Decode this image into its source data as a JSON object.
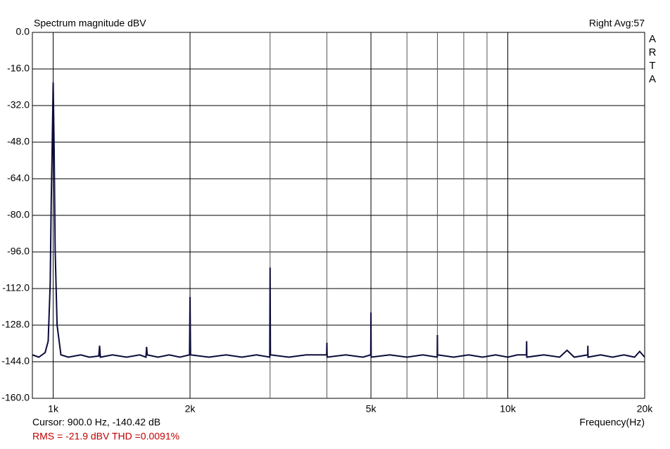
{
  "chart_data": {
    "type": "line",
    "title": "Spectrum magnitude dBV",
    "channel_info": "Right  Avg:57",
    "brand": "ARTA",
    "x_label": "Frequency(Hz)",
    "cursor_text": "Cursor:  900.0 Hz, -140.42 dB",
    "measurement_text": "RMS =  -21.9 dBV   THD =0.0091%",
    "x_log": true,
    "grid": true,
    "xlim": [
      900,
      20000
    ],
    "ylim": [
      -160,
      0
    ],
    "xticks": [
      {
        "value": 1000,
        "label": "1k"
      },
      {
        "value": 2000,
        "label": "2k"
      },
      {
        "value": 5000,
        "label": "5k"
      },
      {
        "value": 10000,
        "label": "10k"
      },
      {
        "value": 20000,
        "label": "20k"
      }
    ],
    "x_minor_grid": [
      3000,
      4000,
      6000,
      7000,
      8000,
      9000
    ],
    "yticks": [
      {
        "value": 0,
        "label": "0.0"
      },
      {
        "value": -16,
        "label": "-16.0"
      },
      {
        "value": -32,
        "label": "-32.0"
      },
      {
        "value": -48,
        "label": "-48.0"
      },
      {
        "value": -64,
        "label": "-64.0"
      },
      {
        "value": -80,
        "label": "-80.0"
      },
      {
        "value": -96,
        "label": "-96.0"
      },
      {
        "value": -112,
        "label": "-112.0"
      },
      {
        "value": -128,
        "label": "-128.0"
      },
      {
        "value": -144,
        "label": "-144.0"
      },
      {
        "value": -160,
        "label": "-160.0"
      }
    ],
    "series": [
      {
        "color": "#0b0b3b",
        "x": [
          900,
          930,
          960,
          975,
          985,
          990,
          995,
          1000,
          1005,
          1010,
          1020,
          1040,
          1080,
          1150,
          1200,
          1260,
          1265,
          1270,
          1350,
          1450,
          1550,
          1600,
          1605,
          1610,
          1700,
          1800,
          1900,
          1995,
          2000,
          2005,
          2200,
          2400,
          2600,
          2800,
          2995,
          3000,
          3005,
          3300,
          3600,
          3995,
          4000,
          4005,
          4400,
          4800,
          4995,
          5000,
          5005,
          5500,
          6000,
          6500,
          6995,
          7000,
          7005,
          7600,
          8200,
          8800,
          9400,
          10000,
          10500,
          10990,
          11000,
          11010,
          12000,
          13000,
          13500,
          14000,
          14990,
          15000,
          15010,
          16000,
          17000,
          18000,
          19000,
          19500,
          20000
        ],
        "values": [
          -141,
          -142,
          -140,
          -135,
          -110,
          -75,
          -50,
          -21.9,
          -52,
          -95,
          -128,
          -141,
          -142,
          -141,
          -142,
          -141.5,
          -137,
          -142,
          -141,
          -142,
          -141,
          -142,
          -137.5,
          -141,
          -142,
          -141,
          -142,
          -141,
          -115.7,
          -141,
          -142,
          -141,
          -142,
          -141,
          -142,
          -102.8,
          -141,
          -142,
          -141,
          -141,
          -135.7,
          -142,
          -141,
          -142,
          -141,
          -122.5,
          -142,
          -141,
          -142,
          -141,
          -142,
          -132.3,
          -141,
          -142,
          -141,
          -142,
          -141,
          -142,
          -141,
          -141,
          -135,
          -142,
          -141,
          -142,
          -139,
          -142,
          -141,
          -137,
          -142,
          -141,
          -142,
          -141,
          -142,
          -139.5,
          -142
        ]
      }
    ]
  }
}
